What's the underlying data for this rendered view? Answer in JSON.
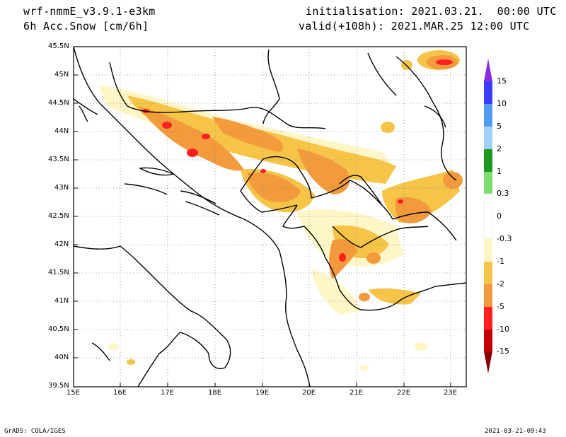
{
  "header": {
    "model": "wrf-nmmE_v3.9.1-e3km",
    "field": "6h Acc.Snow [cm/6h]",
    "init": "initialisation: 2021.03.21.  00:00 UTC",
    "valid": "valid(+108h): 2021.MAR.25 12:00 UTC"
  },
  "map": {
    "lat_labels": [
      "45.5N",
      "45N",
      "44.5N",
      "44N",
      "43.5N",
      "43N",
      "42.5N",
      "42N",
      "41.5N",
      "41N",
      "40.5N",
      "40N",
      "39.5N"
    ],
    "lon_labels": [
      "15E",
      "16E",
      "17E",
      "18E",
      "19E",
      "20E",
      "21E",
      "22E",
      "23E"
    ],
    "lat_range": [
      39.5,
      45.5
    ],
    "lon_range": [
      15,
      23.3
    ],
    "grid": "dotted"
  },
  "colorbar": {
    "labels": [
      "15",
      "10",
      "5",
      "2",
      "1",
      "0.3",
      "0",
      "-0.3",
      "-1",
      "-2",
      "-5",
      "-10",
      "-15"
    ],
    "colors": [
      "#8a2be2",
      "#3c3cff",
      "#4f9cf0",
      "#9fd0ff",
      "#1e9b1e",
      "#7ddc6e",
      "#ffffff",
      "#fff6c8",
      "#f6c447",
      "#f39a3c",
      "#ff1f1f",
      "#c40000",
      "#8b0000"
    ]
  },
  "footer": {
    "left": "GrADS: COLA/IGES",
    "right": "2021-03-21-09:43"
  }
}
